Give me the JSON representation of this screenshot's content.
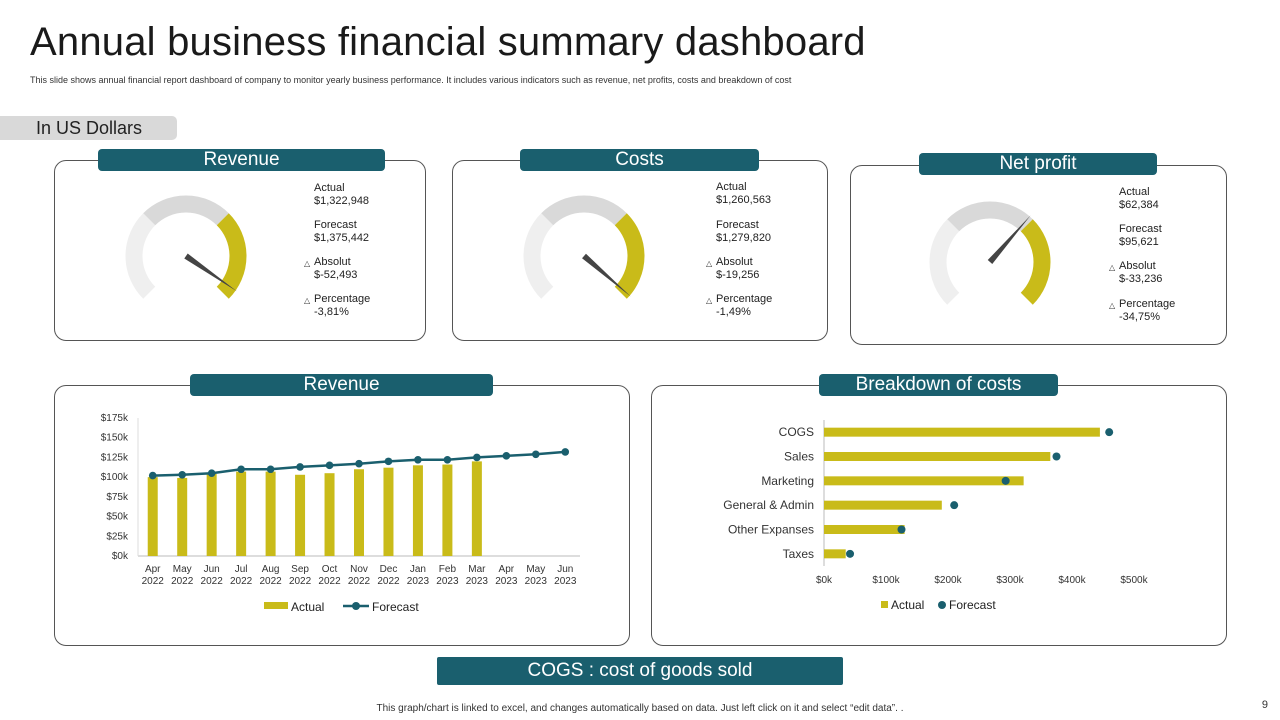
{
  "header": {
    "title": "Annual business financial summary dashboard",
    "subtitle": "This slide shows annual financial report dashboard of company to monitor  yearly business performance. It includes various indicators such as revenue, net profits, costs and breakdown of cost"
  },
  "currency_label": "In US Dollars",
  "colors": {
    "teal": "#1a5f6e",
    "gold": "#c9bb19",
    "grey": "#d9d9d9",
    "light": "#efefef"
  },
  "kpis": [
    {
      "label": "Revenue",
      "actual_label": "Actual",
      "actual": "$1,322,948",
      "forecast_label": "Forecast",
      "forecast": "$1,375,442",
      "absolut_label": "Absolut",
      "absolut": "$-52,493",
      "percentage_label": "Percentage",
      "percentage": "-3,81%",
      "gauge_fraction": 0.962
    },
    {
      "label": "Costs",
      "actual_label": "Actual",
      "actual": "$1,260,563",
      "forecast_label": "Forecast",
      "forecast": "$1,279,820",
      "absolut_label": "Absolut",
      "absolut": "$-19,256",
      "percentage_label": "Percentage",
      "percentage": "-1,49%",
      "gauge_fraction": 0.985
    },
    {
      "label": "Net profit",
      "actual_label": "Actual",
      "actual": "$62,384",
      "forecast_label": "Forecast",
      "forecast": "$95,621",
      "absolut_label": "Absolut",
      "absolut": "$-33,236",
      "percentage_label": "Percentage",
      "percentage": "-34,75%",
      "gauge_fraction": 0.652
    }
  ],
  "revenue_chart_label": "Revenue",
  "breakdown_chart_label": "Breakdown of costs",
  "cogs_note": "COGS : cost of goods sold",
  "footnote": "This graph/chart is linked to excel, and changes automatically based on data. Just left click on it and select “edit data”. .",
  "page_number": "9",
  "chart_data": [
    {
      "type": "bar+line",
      "title": "Revenue",
      "categories": [
        "Apr 2022",
        "May 2022",
        "Jun 2022",
        "Jul 2022",
        "Aug 2022",
        "Sep 2022",
        "Oct 2022",
        "Nov 2022",
        "Dec 2022",
        "Jan 2023",
        "Feb 2023",
        "Mar 2023",
        "Apr 2023",
        "May 2023",
        "Jun 2023"
      ],
      "series": [
        {
          "name": "Actual",
          "kind": "bar",
          "values": [
            100000,
            99000,
            104000,
            107000,
            107000,
            103000,
            105000,
            110000,
            112000,
            115000,
            116000,
            120000,
            null,
            null,
            null
          ]
        },
        {
          "name": "Forecast",
          "kind": "line",
          "values": [
            102000,
            103000,
            105000,
            110000,
            110000,
            113000,
            115000,
            117000,
            120000,
            122000,
            122000,
            125000,
            127000,
            129000,
            132000
          ]
        }
      ],
      "yticks": [
        "$0k",
        "$25k",
        "$50k",
        "$75k",
        "$100k",
        "$125k",
        "$150k",
        "$175k"
      ],
      "ylim": [
        0,
        175000
      ],
      "legend": [
        "Actual",
        "Forecast"
      ],
      "legend_position": "bottom"
    },
    {
      "type": "bar+dot",
      "orientation": "horizontal",
      "title": "Breakdown of costs",
      "categories": [
        "COGS",
        "Sales",
        "Marketing",
        "General & Admin",
        "Other Expanses",
        "Taxes"
      ],
      "series": [
        {
          "name": "Actual",
          "kind": "bar",
          "values": [
            445000,
            365000,
            322000,
            190000,
            130000,
            35000
          ]
        },
        {
          "name": "Forecast",
          "kind": "dot",
          "values": [
            460000,
            375000,
            293000,
            210000,
            125000,
            42000
          ]
        }
      ],
      "xticks": [
        "$0k",
        "$100k",
        "$200k",
        "$300k",
        "$400k",
        "$500k"
      ],
      "xlim": [
        0,
        500000
      ],
      "legend": [
        "Actual",
        "Forecast"
      ],
      "legend_position": "bottom"
    }
  ]
}
